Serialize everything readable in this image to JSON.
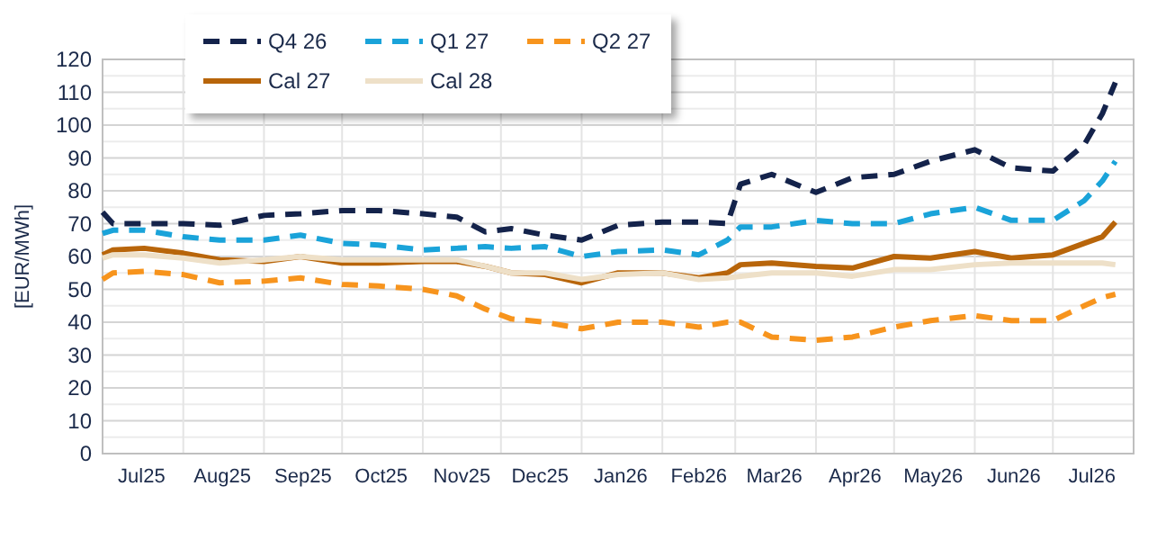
{
  "chart_data": {
    "type": "line",
    "ylabel": "[EUR/MWh]",
    "x": [
      "2025-07-01",
      "2025-07-05",
      "2025-07-17",
      "2025-08-01",
      "2025-08-15",
      "2025-09-01",
      "2025-09-15",
      "2025-10-01",
      "2025-10-15",
      "2025-11-01",
      "2025-11-14",
      "2025-11-25",
      "2025-12-05",
      "2025-12-18",
      "2026-01-01",
      "2026-01-15",
      "2026-02-01",
      "2026-02-15",
      "2026-02-26",
      "2026-03-03",
      "2026-03-15",
      "2026-04-01",
      "2026-04-15",
      "2026-05-01",
      "2026-05-15",
      "2026-06-01",
      "2026-06-15",
      "2026-07-01",
      "2026-07-13",
      "2026-07-20",
      "2026-07-25"
    ],
    "series": [
      {
        "name": "Q4 26",
        "color": "#14234b",
        "line_style": "dashed",
        "values": [
          73.5,
          70,
          70,
          70,
          69.5,
          72.5,
          73,
          74,
          74,
          73,
          72,
          67.5,
          68.5,
          66.5,
          65,
          69.5,
          70.5,
          70.5,
          70,
          82,
          85,
          79.5,
          84,
          85,
          89,
          92.5,
          87,
          86,
          94,
          103.5,
          113
        ]
      },
      {
        "name": "Q1 27",
        "color": "#1aa3d9",
        "line_style": "dashed",
        "values": [
          67,
          68,
          68,
          66,
          65,
          65,
          66.5,
          64,
          63.5,
          62,
          62.5,
          63,
          62.5,
          63,
          60,
          61.5,
          62,
          60.5,
          65,
          69,
          69,
          71,
          70,
          70,
          73,
          75,
          71,
          71,
          77,
          83,
          89
        ]
      },
      {
        "name": "Q2 27",
        "color": "#f7941d",
        "line_style": "dashed",
        "values": [
          53,
          55,
          55.5,
          54.5,
          52,
          52.5,
          53.5,
          51.5,
          51,
          50,
          48,
          44,
          41,
          40,
          38,
          40,
          40,
          38.5,
          40,
          40,
          35.5,
          34.5,
          35.5,
          38.5,
          40.5,
          42,
          40.5,
          40.5,
          45,
          47.5,
          48.5
        ]
      },
      {
        "name": "Cal 27",
        "color": "#b8650a",
        "line_style": "solid",
        "values": [
          60.5,
          62,
          62.5,
          61,
          59,
          58.5,
          60,
          58,
          58,
          58.5,
          58.5,
          57,
          55,
          54.5,
          52,
          55,
          55,
          53.5,
          55,
          57.5,
          58,
          57,
          56.5,
          60,
          59.5,
          61.5,
          59.5,
          60.5,
          64,
          66,
          70.5
        ]
      },
      {
        "name": "Cal 28",
        "color": "#eee0c8",
        "line_style": "solid",
        "values": [
          59.5,
          60.5,
          60.5,
          59.5,
          58,
          59,
          60,
          59,
          59,
          59,
          59,
          57,
          55,
          55,
          53,
          54.5,
          55,
          53,
          53.5,
          54,
          55,
          55,
          54,
          56,
          56,
          57.5,
          58,
          58,
          58,
          58,
          57.5
        ]
      }
    ],
    "xlim": [
      "2025-07-01",
      "2026-08-01"
    ],
    "xticks": [
      {
        "value": "2025-07-01",
        "label": null
      },
      {
        "value": "2025-07-16",
        "label": "Jul25"
      },
      {
        "value": "2025-08-01",
        "label": null
      },
      {
        "value": "2025-08-16",
        "label": "Aug25"
      },
      {
        "value": "2025-09-01",
        "label": null
      },
      {
        "value": "2025-09-16",
        "label": "Sep25"
      },
      {
        "value": "2025-10-01",
        "label": null
      },
      {
        "value": "2025-10-16",
        "label": "Oct25"
      },
      {
        "value": "2025-11-01",
        "label": null
      },
      {
        "value": "2025-11-16",
        "label": "Nov25"
      },
      {
        "value": "2025-12-01",
        "label": null
      },
      {
        "value": "2025-12-16",
        "label": "Dec25"
      },
      {
        "value": "2026-01-01",
        "label": null
      },
      {
        "value": "2026-01-16",
        "label": "Jan26"
      },
      {
        "value": "2026-02-01",
        "label": null
      },
      {
        "value": "2026-02-15",
        "label": "Feb26"
      },
      {
        "value": "2026-03-01",
        "label": null
      },
      {
        "value": "2026-03-16",
        "label": "Mar26"
      },
      {
        "value": "2026-04-01",
        "label": null
      },
      {
        "value": "2026-04-16",
        "label": "Apr26"
      },
      {
        "value": "2026-05-01",
        "label": null
      },
      {
        "value": "2026-05-16",
        "label": "May26"
      },
      {
        "value": "2026-06-01",
        "label": null
      },
      {
        "value": "2026-06-16",
        "label": "Jun26"
      },
      {
        "value": "2026-07-01",
        "label": null
      },
      {
        "value": "2026-07-16",
        "label": "Jul26"
      },
      {
        "value": "2026-08-01",
        "label": null
      }
    ],
    "ylim": [
      0,
      120
    ],
    "yticks": [
      0,
      {
        "value": 5,
        "label": null
      },
      10,
      {
        "value": 15,
        "label": null
      },
      20,
      {
        "value": 25,
        "label": null
      },
      30,
      {
        "value": 35,
        "label": null
      },
      40,
      {
        "value": 45,
        "label": null
      },
      50,
      {
        "value": 55,
        "label": null
      },
      60,
      {
        "value": 65,
        "label": null
      },
      70,
      {
        "value": 75,
        "label": null
      },
      80,
      {
        "value": 85,
        "label": null
      },
      90,
      {
        "value": 95,
        "label": null
      },
      100,
      {
        "value": 105,
        "label": null
      },
      110,
      {
        "value": 115,
        "label": null
      },
      120
    ],
    "grid": true,
    "legend": "top left"
  }
}
